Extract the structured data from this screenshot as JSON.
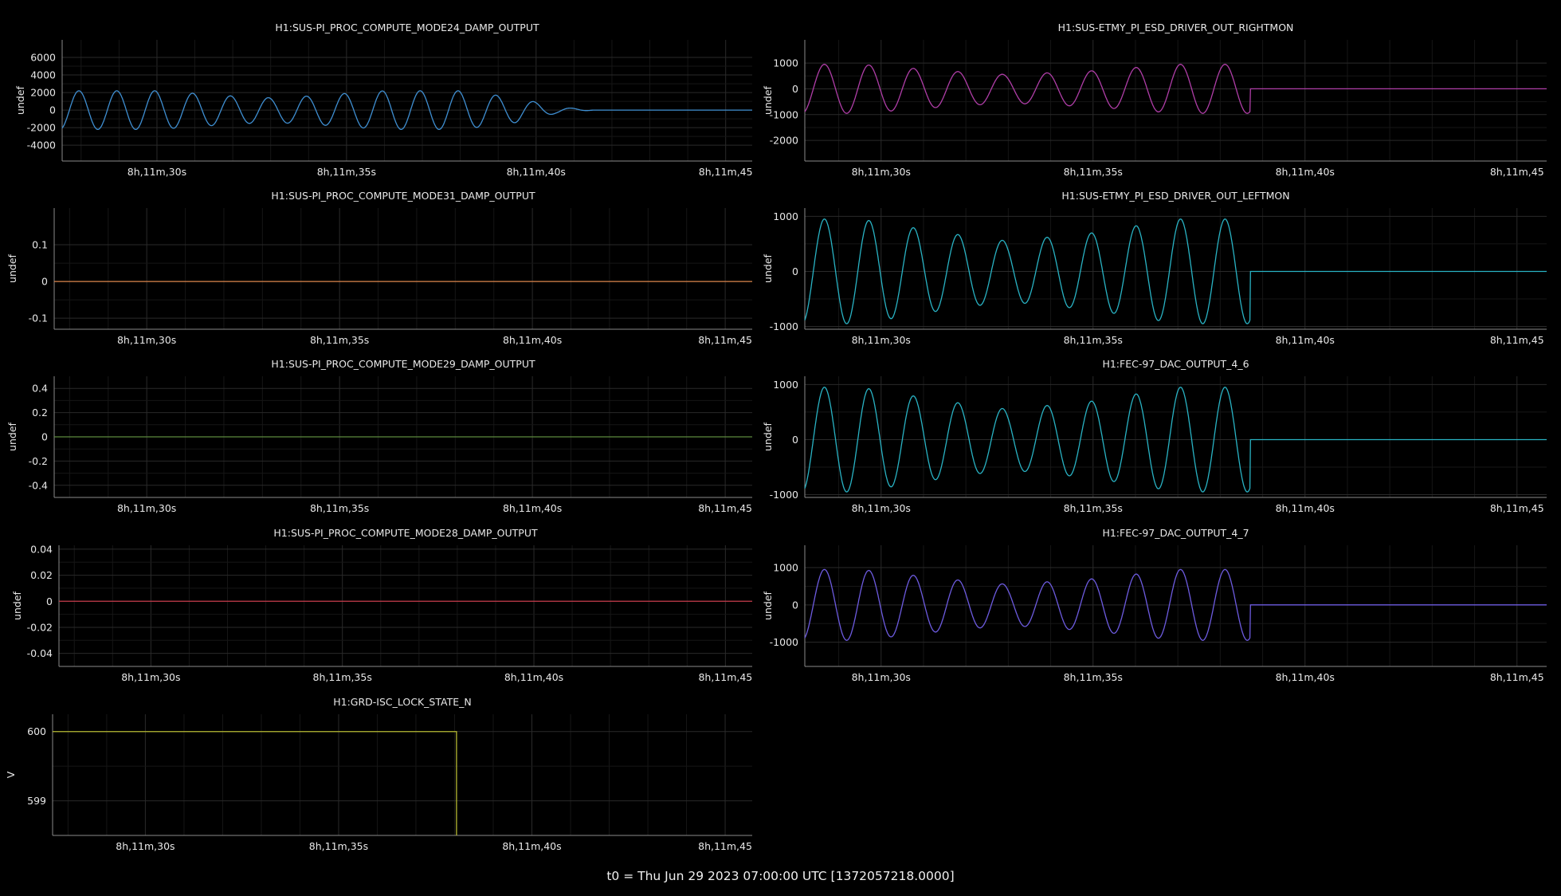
{
  "footer": "t0 = Thu Jun 29 2023 07:00:00 UTC [1372057218.0000]",
  "chart_data": [
    {
      "type": "line",
      "title": "H1:SUS-PI_PROC_COMPUTE_MODE24_DAMP_OUTPUT",
      "ylabel": "undef",
      "yticks": [
        6000,
        4000,
        2000,
        0,
        -2000,
        -4000
      ],
      "ytick_labels": [
        "6000",
        "4000",
        "2000",
        "0",
        "-2000",
        "-4000"
      ],
      "ylim": [
        -5800,
        8000
      ],
      "xlim": [
        27.5,
        45.7
      ],
      "xticks": [
        30,
        35,
        40,
        45
      ],
      "xtick_labels": [
        "8h,11m,30s",
        "8h,11m,35s",
        "8h,11m,40s",
        "8h,11m,45"
      ],
      "series": [
        {
          "color": "#3f8fd2",
          "signal": {
            "kind": "damped_sine",
            "t_start": 27.5,
            "t_end": 45.7,
            "period": 1.0,
            "amplitude_by_second": [
              [
                27.5,
                2200
              ],
              [
                30,
                2200
              ],
              [
                32,
                1600
              ],
              [
                33,
                1400
              ],
              [
                34,
                1600
              ],
              [
                36,
                2200
              ],
              [
                38,
                2200
              ],
              [
                39.5,
                1400
              ],
              [
                40.5,
                400
              ],
              [
                41.5,
                0
              ]
            ],
            "offset_after_stop": 0
          }
        }
      ]
    },
    {
      "type": "line",
      "title": "H1:SUS-ETMY_PI_ESD_DRIVER_OUT_RIGHTMON",
      "ylabel": "undef",
      "yticks": [
        1000,
        0,
        -1000,
        -2000
      ],
      "ytick_labels": [
        "1000",
        "0",
        "-1000",
        "-2000"
      ],
      "ylim": [
        -2800,
        1900
      ],
      "xlim": [
        28.2,
        45.7
      ],
      "xticks": [
        30,
        35,
        40,
        45
      ],
      "xtick_labels": [
        "8h,11m,30s",
        "8h,11m,35s",
        "8h,11m,40s",
        "8h,11m,45"
      ],
      "series": [
        {
          "color": "#b03ea8",
          "signal": {
            "kind": "damped_sine",
            "t_start": 28.2,
            "t_end": 45.7,
            "period": 1.05,
            "amplitude_by_second": [
              [
                28.2,
                950
              ],
              [
                29.5,
                950
              ],
              [
                31.5,
                700
              ],
              [
                33,
                550
              ],
              [
                35,
                700
              ],
              [
                37,
                950
              ],
              [
                38.7,
                950
              ]
            ],
            "stop_at": 38.7,
            "offset_after_stop": 0
          }
        }
      ]
    },
    {
      "type": "line",
      "title": "H1:SUS-PI_PROC_COMPUTE_MODE31_DAMP_OUTPUT",
      "ylabel": "undef",
      "yticks": [
        0.1,
        0,
        -0.1
      ],
      "ytick_labels": [
        "0.1",
        "0",
        "-0.1"
      ],
      "ylim": [
        -0.13,
        0.2
      ],
      "xlim": [
        27.6,
        45.7
      ],
      "xticks": [
        30,
        35,
        40,
        45
      ],
      "xtick_labels": [
        "8h,11m,30s",
        "8h,11m,35s",
        "8h,11m,40s",
        "8h,11m,45"
      ],
      "series": [
        {
          "color": "#d9834a",
          "signal": {
            "kind": "constant",
            "t_start": 27.6,
            "t_end": 45.7,
            "value": 0
          }
        }
      ]
    },
    {
      "type": "line",
      "title": "H1:SUS-ETMY_PI_ESD_DRIVER_OUT_LEFTMON",
      "ylabel": "undef",
      "yticks": [
        1000,
        0,
        -1000
      ],
      "ytick_labels": [
        "1000",
        "0",
        "-1000"
      ],
      "ylim": [
        -1050,
        1150
      ],
      "xlim": [
        28.2,
        45.7
      ],
      "xticks": [
        30,
        35,
        40,
        45
      ],
      "xtick_labels": [
        "8h,11m,30s",
        "8h,11m,35s",
        "8h,11m,40s",
        "8h,11m,45"
      ],
      "series": [
        {
          "color": "#29b3c4",
          "signal": {
            "kind": "damped_sine",
            "t_start": 28.2,
            "t_end": 45.7,
            "period": 1.05,
            "amplitude_by_second": [
              [
                28.2,
                950
              ],
              [
                29.5,
                950
              ],
              [
                31.5,
                700
              ],
              [
                33,
                550
              ],
              [
                35,
                700
              ],
              [
                37,
                950
              ],
              [
                38.7,
                950
              ]
            ],
            "stop_at": 38.7,
            "offset_after_stop": 0
          }
        }
      ]
    },
    {
      "type": "line",
      "title": "H1:SUS-PI_PROC_COMPUTE_MODE29_DAMP_OUTPUT",
      "ylabel": "undef",
      "yticks": [
        0.4,
        0.2,
        0,
        -0.2,
        -0.4
      ],
      "ytick_labels": [
        "0.4",
        "0.2",
        "0",
        "-0.2",
        "-0.4"
      ],
      "ylim": [
        -0.5,
        0.5
      ],
      "xlim": [
        27.6,
        45.7
      ],
      "xticks": [
        30,
        35,
        40,
        45
      ],
      "xtick_labels": [
        "8h,11m,30s",
        "8h,11m,35s",
        "8h,11m,40s",
        "8h,11m,45"
      ],
      "series": [
        {
          "color": "#5d8a3e",
          "signal": {
            "kind": "constant",
            "t_start": 27.6,
            "t_end": 45.7,
            "value": 0
          }
        }
      ]
    },
    {
      "type": "line",
      "title": "H1:FEC-97_DAC_OUTPUT_4_6",
      "ylabel": "undef",
      "yticks": [
        1000,
        0,
        -1000
      ],
      "ytick_labels": [
        "1000",
        "0",
        "-1000"
      ],
      "ylim": [
        -1050,
        1150
      ],
      "xlim": [
        28.2,
        45.7
      ],
      "xticks": [
        30,
        35,
        40,
        45
      ],
      "xtick_labels": [
        "8h,11m,30s",
        "8h,11m,35s",
        "8h,11m,40s",
        "8h,11m,45"
      ],
      "series": [
        {
          "color": "#29b3c4",
          "signal": {
            "kind": "damped_sine",
            "t_start": 28.2,
            "t_end": 45.7,
            "period": 1.05,
            "amplitude_by_second": [
              [
                28.2,
                950
              ],
              [
                29.5,
                950
              ],
              [
                31.5,
                700
              ],
              [
                33,
                550
              ],
              [
                35,
                700
              ],
              [
                37,
                950
              ],
              [
                38.7,
                950
              ]
            ],
            "stop_at": 38.7,
            "offset_after_stop": 0
          }
        }
      ]
    },
    {
      "type": "line",
      "title": "H1:SUS-PI_PROC_COMPUTE_MODE28_DAMP_OUTPUT",
      "ylabel": "undef",
      "yticks": [
        0.04,
        0.02,
        0,
        -0.02,
        -0.04
      ],
      "ytick_labels": [
        "0.04",
        "0.02",
        "0",
        "-0.02",
        "-0.04"
      ],
      "ylim": [
        -0.05,
        0.043
      ],
      "xlim": [
        27.6,
        45.7
      ],
      "xticks": [
        30,
        35,
        40,
        45
      ],
      "xtick_labels": [
        "8h,11m,30s",
        "8h,11m,35s",
        "8h,11m,40s",
        "8h,11m,45"
      ],
      "series": [
        {
          "color": "#c43a4a",
          "signal": {
            "kind": "constant",
            "t_start": 27.6,
            "t_end": 45.7,
            "value": 0
          }
        }
      ]
    },
    {
      "type": "line",
      "title": "H1:FEC-97_DAC_OUTPUT_4_7",
      "ylabel": "undef",
      "yticks": [
        1000,
        0,
        -1000
      ],
      "ytick_labels": [
        "1000",
        "0",
        "-1000"
      ],
      "ylim": [
        -1650,
        1600
      ],
      "xlim": [
        28.2,
        45.7
      ],
      "xticks": [
        30,
        35,
        40,
        45
      ],
      "xtick_labels": [
        "8h,11m,30s",
        "8h,11m,35s",
        "8h,11m,40s",
        "8h,11m,45"
      ],
      "series": [
        {
          "color": "#6d5be0",
          "signal": {
            "kind": "damped_sine",
            "t_start": 28.2,
            "t_end": 45.7,
            "period": 1.05,
            "amplitude_by_second": [
              [
                28.2,
                950
              ],
              [
                29.5,
                950
              ],
              [
                31.5,
                700
              ],
              [
                33,
                550
              ],
              [
                35,
                700
              ],
              [
                37,
                950
              ],
              [
                38.7,
                950
              ]
            ],
            "stop_at": 38.7,
            "offset_after_stop": 0
          }
        }
      ]
    },
    {
      "type": "line",
      "title": "H1:GRD-ISC_LOCK_STATE_N",
      "ylabel": "V",
      "yticks": [
        600,
        599
      ],
      "ytick_labels": [
        "600",
        "599"
      ],
      "ylim": [
        598.5,
        600.25
      ],
      "xlim": [
        27.6,
        45.7
      ],
      "xticks": [
        30,
        35,
        40,
        45
      ],
      "xtick_labels": [
        "8h,11m,30s",
        "8h,11m,35s",
        "8h,11m,40s",
        "8h,11m,45"
      ],
      "series": [
        {
          "color": "#b5b832",
          "signal": {
            "kind": "step",
            "t_start": 27.6,
            "t_end": 38.05,
            "value": 600,
            "drop_to": 598.5
          }
        }
      ]
    }
  ]
}
